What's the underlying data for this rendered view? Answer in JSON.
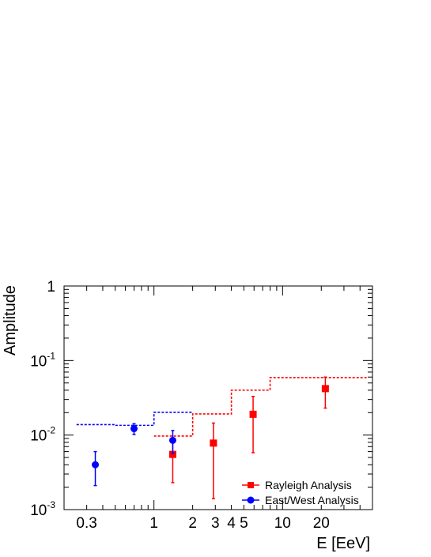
{
  "chart_data": {
    "type": "scatter",
    "xlabel": "E [EeV]",
    "ylabel": "Amplitude",
    "x_scale": "log",
    "y_scale": "log",
    "xlim": [
      0.2,
      50
    ],
    "ylim": [
      0.001,
      1
    ],
    "x_tick_labels": [
      "0.3",
      "1",
      "2",
      "3",
      "4",
      "5",
      "10",
      "20"
    ],
    "x_ticks": [
      0.3,
      1,
      2,
      3,
      4,
      5,
      10,
      20
    ],
    "y_ticks": [
      {
        "value": 0.001,
        "base": "10",
        "exp": "-3"
      },
      {
        "value": 0.01,
        "base": "10",
        "exp": "-2"
      },
      {
        "value": 0.1,
        "base": "10",
        "exp": "-1"
      },
      {
        "value": 1,
        "base": "1",
        "exp": ""
      }
    ],
    "grid": false,
    "legend_position": "bottom-right",
    "series": [
      {
        "name": "Rayleigh Analysis",
        "color": "#ff0000",
        "marker": "square",
        "points": [
          {
            "x": 1.4,
            "y": 0.0055,
            "ylo": 0.0023,
            "yhi": 0.0085
          },
          {
            "x": 2.9,
            "y": 0.0078,
            "ylo": 0.0014,
            "yhi": 0.0145
          },
          {
            "x": 5.9,
            "y": 0.019,
            "ylo": 0.0058,
            "yhi": 0.033
          },
          {
            "x": 21.5,
            "y": 0.042,
            "ylo": 0.023,
            "yhi": 0.06
          }
        ]
      },
      {
        "name": "East/West Analysis",
        "color": "#0000ff",
        "marker": "circle",
        "points": [
          {
            "x": 0.35,
            "y": 0.004,
            "ylo": 0.0021,
            "yhi": 0.006
          },
          {
            "x": 0.7,
            "y": 0.0122,
            "ylo": 0.0102,
            "yhi": 0.0142
          },
          {
            "x": 1.4,
            "y": 0.0085,
            "ylo": 0.0057,
            "yhi": 0.0115
          }
        ]
      }
    ],
    "upper_limits": [
      {
        "color": "#0000ff",
        "steps": [
          {
            "x_from": 0.25,
            "x_to": 0.5,
            "y": 0.0138
          },
          {
            "x_from": 0.5,
            "x_to": 1.0,
            "y": 0.0135
          },
          {
            "x_from": 1.0,
            "x_to": 2.0,
            "y": 0.0202
          }
        ]
      },
      {
        "color": "#ff0000",
        "steps": [
          {
            "x_from": 1.0,
            "x_to": 2.0,
            "y": 0.0097
          },
          {
            "x_from": 2.0,
            "x_to": 4.0,
            "y": 0.0192
          },
          {
            "x_from": 4.0,
            "x_to": 8.0,
            "y": 0.04
          },
          {
            "x_from": 8.0,
            "x_to": 45,
            "y": 0.059
          }
        ]
      }
    ]
  }
}
